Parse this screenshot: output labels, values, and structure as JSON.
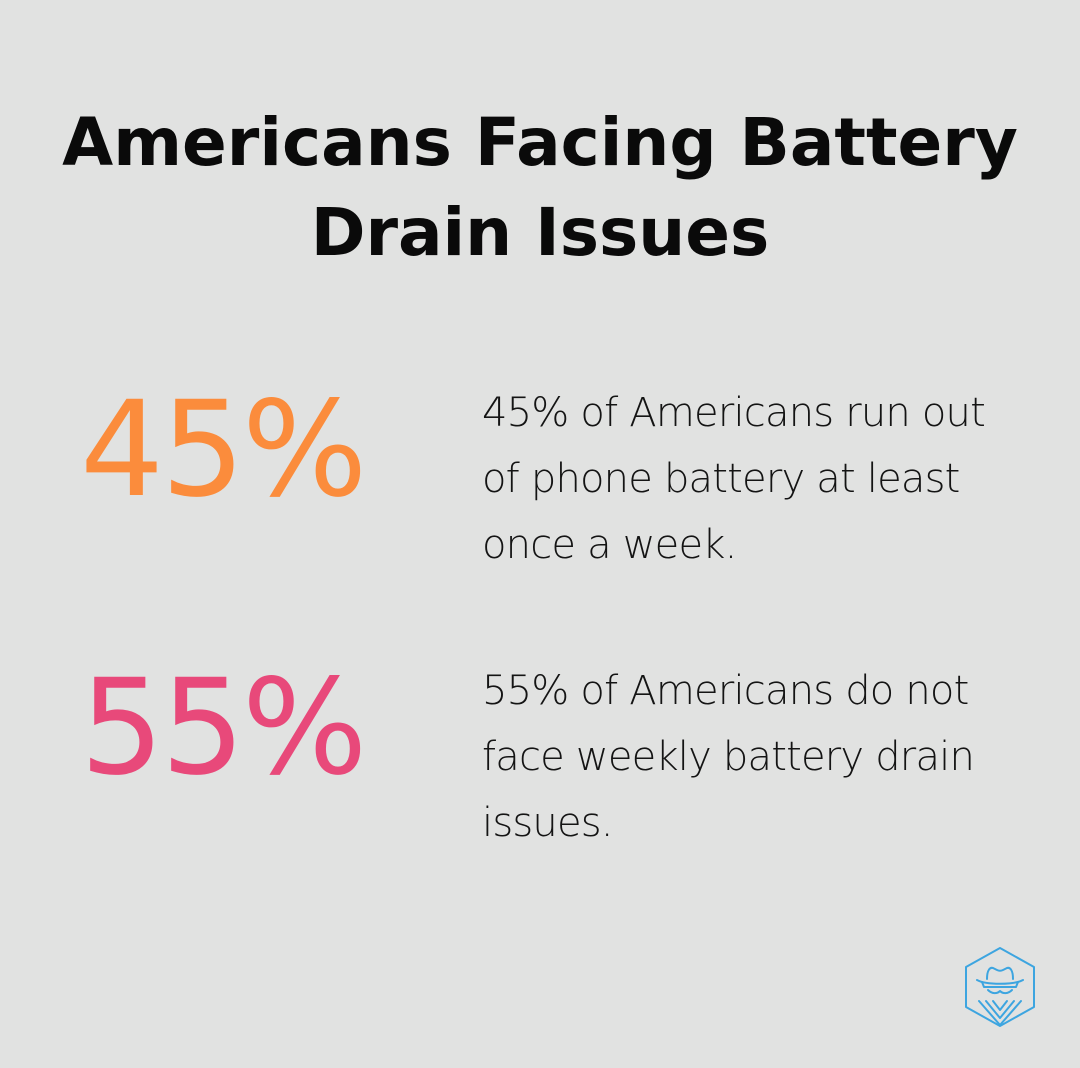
{
  "title": "Americans Facing Battery Drain Issues",
  "stats": [
    {
      "value": "45%",
      "description": "45% of Americans run out of phone battery at least once a week.",
      "color": "#fb8c3c"
    },
    {
      "value": "55%",
      "description": "55% of Americans do not face weekly battery drain issues.",
      "color": "#e8497a"
    }
  ],
  "logo": {
    "icon": "spy-hexagon-logo-icon",
    "color": "#3da5e0"
  }
}
